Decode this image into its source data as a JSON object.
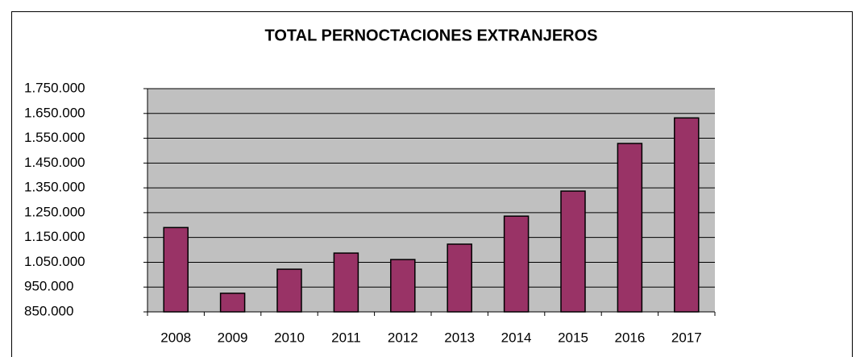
{
  "chart_data": {
    "type": "bar",
    "title": "TOTAL PERNOCTACIONES EXTRANJEROS",
    "categories": [
      "2008",
      "2009",
      "2010",
      "2011",
      "2012",
      "2013",
      "2014",
      "2015",
      "2016",
      "2017"
    ],
    "values": [
      1190000,
      925000,
      1022000,
      1087000,
      1061000,
      1123000,
      1236000,
      1337000,
      1529000,
      1632000
    ],
    "color": "#993366",
    "ylim": [
      850000,
      1750000
    ],
    "yticks": [
      {
        "value": 850000,
        "label": "850.000"
      },
      {
        "value": 950000,
        "label": "950.000"
      },
      {
        "value": 1050000,
        "label": "1.050.000"
      },
      {
        "value": 1150000,
        "label": "1.150.000"
      },
      {
        "value": 1250000,
        "label": "1.250.000"
      },
      {
        "value": 1350000,
        "label": "1.350.000"
      },
      {
        "value": 1450000,
        "label": "1.450.000"
      },
      {
        "value": 1550000,
        "label": "1.550.000"
      },
      {
        "value": 1650000,
        "label": "1.650.000"
      },
      {
        "value": 1750000,
        "label": "1.750.000"
      }
    ],
    "grid": true
  }
}
